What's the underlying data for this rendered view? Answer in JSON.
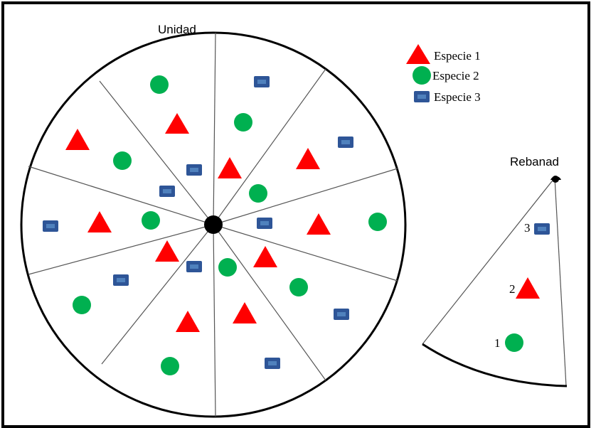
{
  "labels": {
    "unit_title": "Unidad",
    "slice_title": "Rebanad"
  },
  "legend": [
    {
      "label": "Especie 1",
      "icon": "red-triangle-icon"
    },
    {
      "label": "Especie 2",
      "icon": "green-circle-icon"
    },
    {
      "label": "Especie 3",
      "icon": "blue-rectangle-icon"
    }
  ],
  "slice_numbers": [
    "1",
    "2",
    "3"
  ],
  "colors": {
    "species_1": "#ff0000",
    "species_2": "#00b050",
    "species_3_fill": "#2e5597",
    "species_3_inner": "#4f81bd",
    "outline": "#000000"
  }
}
